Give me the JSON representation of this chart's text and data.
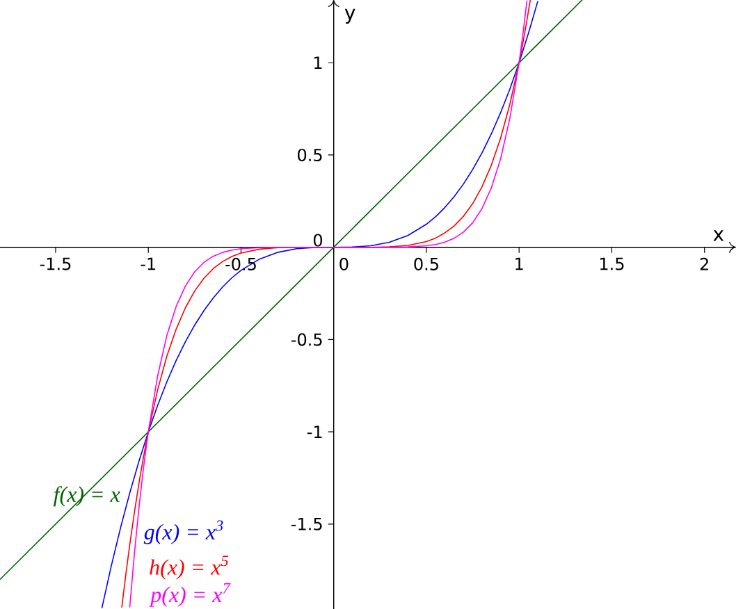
{
  "chart_data": {
    "type": "line",
    "xlabel": "x",
    "ylabel": "y",
    "xlim": [
      -1.8,
      2.17
    ],
    "ylim": [
      -1.96,
      1.34
    ],
    "xticks": [
      -1.5,
      -1,
      -0.5,
      0,
      0.5,
      1,
      1.5,
      2
    ],
    "yticks": [
      -1.5,
      -1,
      -0.5,
      0,
      0.5,
      1
    ],
    "marker": "none",
    "line_style": "solid",
    "series": [
      {
        "name": "f(x) = x",
        "color": "#006400",
        "x": [
          -1.8,
          0,
          1.34
        ],
        "values": [
          -1.8,
          0,
          1.34
        ]
      },
      {
        "name": "g(x) = x$^{3}$",
        "color": "#0000ff",
        "x": [
          -1.25,
          -1.2,
          -1.15,
          -1.1,
          -1.05,
          -1,
          -0.95,
          -0.9,
          -0.85,
          -0.8,
          -0.75,
          -0.7,
          -0.65,
          -0.6,
          -0.55,
          -0.5,
          -0.4,
          -0.3,
          -0.2,
          -0.1,
          0,
          0.1,
          0.2,
          0.3,
          0.4,
          0.5,
          0.55,
          0.6,
          0.65,
          0.7,
          0.75,
          0.8,
          0.85,
          0.9,
          0.95,
          1,
          1.05,
          1.1
        ],
        "values": [
          -1.953,
          -1.728,
          -1.521,
          -1.331,
          -1.158,
          -1,
          -0.857,
          -0.729,
          -0.614,
          -0.512,
          -0.422,
          -0.343,
          -0.275,
          -0.216,
          -0.166,
          -0.125,
          -0.064,
          -0.027,
          -0.008,
          -0.001,
          0,
          0.001,
          0.008,
          0.027,
          0.064,
          0.125,
          0.166,
          0.216,
          0.275,
          0.343,
          0.422,
          0.512,
          0.614,
          0.729,
          0.857,
          1,
          1.158,
          1.331
        ]
      },
      {
        "name": "h(x) = x$^{5}$",
        "color": "#ff0000",
        "x": [
          -1.143,
          -1.12,
          -1.1,
          -1.075,
          -1.05,
          -1.04,
          -1.02,
          -1,
          -0.95,
          -0.9,
          -0.85,
          -0.8,
          -0.75,
          -0.7,
          -0.65,
          -0.6,
          -0.55,
          -0.5,
          -0.4,
          -0.3,
          -0.2,
          0,
          0.2,
          0.3,
          0.4,
          0.5,
          0.55,
          0.6,
          0.65,
          0.7,
          0.75,
          0.8,
          0.85,
          0.9,
          0.95,
          1,
          1.02,
          1.04,
          1.06
        ],
        "values": [
          -1.95,
          -1.762,
          -1.611,
          -1.436,
          -1.276,
          -1.217,
          -1.104,
          -1,
          -0.774,
          -0.59,
          -0.444,
          -0.328,
          -0.237,
          -0.168,
          -0.116,
          -0.078,
          -0.05,
          -0.031,
          -0.01,
          -0.002,
          0,
          0,
          0,
          0.002,
          0.01,
          0.031,
          0.05,
          0.078,
          0.116,
          0.168,
          0.237,
          0.328,
          0.444,
          0.59,
          0.774,
          1,
          1.104,
          1.217,
          1.338
        ]
      },
      {
        "name": "p(x) = x$^{7}$",
        "color": "#ff00ff",
        "x": [
          -1.1,
          -1.075,
          -1.05,
          -1.03,
          -1.02,
          -1,
          -0.95,
          -0.9,
          -0.85,
          -0.8,
          -0.75,
          -0.7,
          -0.65,
          -0.6,
          -0.55,
          -0.5,
          -0.4,
          -0.3,
          0,
          0.3,
          0.4,
          0.5,
          0.55,
          0.6,
          0.65,
          0.7,
          0.75,
          0.8,
          0.85,
          0.9,
          0.95,
          1,
          1.02,
          1.042
        ],
        "values": [
          -1.949,
          -1.659,
          -1.407,
          -1.23,
          -1.149,
          -1,
          -0.698,
          -0.478,
          -0.321,
          -0.21,
          -0.133,
          -0.082,
          -0.049,
          -0.028,
          -0.015,
          -0.008,
          -0.002,
          0,
          0,
          0,
          0.002,
          0.008,
          0.015,
          0.028,
          0.049,
          0.082,
          0.133,
          0.21,
          0.321,
          0.478,
          0.698,
          1,
          1.149,
          1.334
        ]
      }
    ]
  }
}
